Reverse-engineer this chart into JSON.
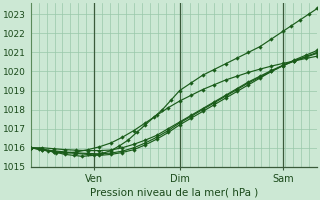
{
  "xlabel": "Pression niveau de la mer( hPa )",
  "bg_color": "#cce8d4",
  "grid_color": "#99c8aa",
  "line_color": "#1a5c1a",
  "dark_line_color": "#2a4a2a",
  "ylim": [
    1015.0,
    1023.6
  ],
  "xlim": [
    0,
    1
  ],
  "xtick_positions": [
    0.22,
    0.52,
    0.88
  ],
  "xtick_labels": [
    "Ven",
    "Dim",
    "Sam"
  ],
  "ytick_positions": [
    1015,
    1016,
    1017,
    1018,
    1019,
    1020,
    1021,
    1022,
    1023
  ],
  "vline_positions": [
    0.22,
    0.52,
    0.88
  ],
  "series": [
    {
      "x": [
        0.0,
        0.03,
        0.06,
        0.09,
        0.12,
        0.15,
        0.18,
        0.22,
        0.25,
        0.28,
        0.31,
        0.34,
        0.37,
        0.4,
        0.43,
        0.46,
        0.49,
        0.52,
        0.56,
        0.6,
        0.64,
        0.68,
        0.72,
        0.76,
        0.8,
        0.84,
        0.88,
        0.91,
        0.94,
        0.97,
        1.0
      ],
      "y": [
        1016.0,
        1015.95,
        1015.85,
        1015.75,
        1015.65,
        1015.6,
        1015.55,
        1015.6,
        1015.7,
        1015.85,
        1016.1,
        1016.4,
        1016.8,
        1017.2,
        1017.6,
        1018.0,
        1018.5,
        1019.0,
        1019.4,
        1019.8,
        1020.1,
        1020.4,
        1020.7,
        1021.0,
        1021.3,
        1021.7,
        1022.1,
        1022.4,
        1022.7,
        1023.0,
        1023.3
      ]
    },
    {
      "x": [
        0.0,
        0.04,
        0.08,
        0.12,
        0.16,
        0.2,
        0.24,
        0.28,
        0.32,
        0.36,
        0.4,
        0.44,
        0.48,
        0.52,
        0.56,
        0.6,
        0.64,
        0.68,
        0.72,
        0.76,
        0.8,
        0.84,
        0.88,
        0.92,
        0.96,
        1.0
      ],
      "y": [
        1016.0,
        1015.9,
        1015.8,
        1015.75,
        1015.7,
        1015.65,
        1015.6,
        1015.65,
        1015.75,
        1015.9,
        1016.15,
        1016.45,
        1016.8,
        1017.2,
        1017.55,
        1017.9,
        1018.25,
        1018.6,
        1018.95,
        1019.3,
        1019.65,
        1020.0,
        1020.3,
        1020.6,
        1020.85,
        1021.1
      ]
    },
    {
      "x": [
        0.0,
        0.04,
        0.08,
        0.12,
        0.16,
        0.2,
        0.24,
        0.28,
        0.32,
        0.36,
        0.4,
        0.44,
        0.48,
        0.52,
        0.56,
        0.6,
        0.64,
        0.68,
        0.72,
        0.76,
        0.8,
        0.84,
        0.88,
        0.92,
        0.96,
        1.0
      ],
      "y": [
        1016.0,
        1015.92,
        1015.84,
        1015.78,
        1015.73,
        1015.7,
        1015.68,
        1015.72,
        1015.82,
        1016.0,
        1016.25,
        1016.55,
        1016.9,
        1017.3,
        1017.65,
        1018.0,
        1018.35,
        1018.7,
        1019.05,
        1019.4,
        1019.7,
        1020.0,
        1020.3,
        1020.55,
        1020.78,
        1021.0
      ]
    },
    {
      "x": [
        0.0,
        0.04,
        0.08,
        0.12,
        0.16,
        0.2,
        0.24,
        0.28,
        0.32,
        0.36,
        0.4,
        0.44,
        0.48,
        0.52,
        0.56,
        0.6,
        0.64,
        0.68,
        0.72,
        0.76,
        0.8,
        0.84,
        0.88,
        0.92,
        0.96,
        1.0
      ],
      "y": [
        1016.0,
        1016.0,
        1015.95,
        1015.9,
        1015.87,
        1015.85,
        1015.85,
        1015.88,
        1016.0,
        1016.18,
        1016.4,
        1016.65,
        1017.0,
        1017.35,
        1017.7,
        1018.05,
        1018.4,
        1018.75,
        1019.1,
        1019.45,
        1019.75,
        1020.05,
        1020.32,
        1020.55,
        1020.75,
        1020.95
      ]
    },
    {
      "x": [
        0.0,
        0.04,
        0.08,
        0.12,
        0.16,
        0.2,
        0.24,
        0.28,
        0.32,
        0.36,
        0.4,
        0.44,
        0.48,
        0.52,
        0.56,
        0.6,
        0.64,
        0.68,
        0.72,
        0.76,
        0.8,
        0.84,
        0.88,
        0.92,
        0.96,
        1.0
      ],
      "y": [
        1016.0,
        1015.88,
        1015.78,
        1015.72,
        1015.78,
        1015.9,
        1016.05,
        1016.25,
        1016.55,
        1016.9,
        1017.3,
        1017.7,
        1018.1,
        1018.45,
        1018.75,
        1019.05,
        1019.3,
        1019.55,
        1019.75,
        1019.95,
        1020.12,
        1020.28,
        1020.42,
        1020.55,
        1020.68,
        1020.8
      ]
    }
  ]
}
